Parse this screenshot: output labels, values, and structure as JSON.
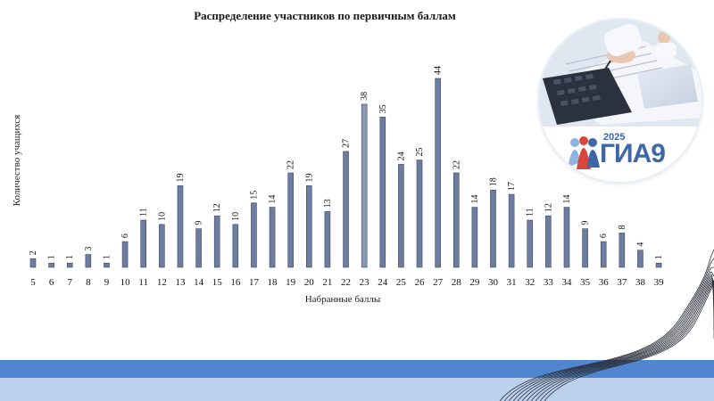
{
  "colors": {
    "bar": "#6d7da0",
    "bar_highlight": "#8a98b8",
    "band_dark": "#4f86cf",
    "band_light": "#bcd1ee",
    "logo_blue": "#3f67a8",
    "logo_red": "#d9463b",
    "logo_light": "#8fb3e0"
  },
  "chart_data": {
    "type": "bar",
    "title": "Распределение участников по первичным баллам",
    "xlabel": "Набранные баллы",
    "ylabel": "Количество учащихся",
    "categories": [
      "5",
      "6",
      "7",
      "8",
      "9",
      "10",
      "11",
      "12",
      "13",
      "14",
      "15",
      "16",
      "17",
      "18",
      "19",
      "20",
      "21",
      "22",
      "23",
      "24",
      "25",
      "26",
      "27",
      "28",
      "29",
      "30",
      "31",
      "32",
      "33",
      "34",
      "35",
      "36",
      "37",
      "38",
      "39"
    ],
    "values": [
      2,
      1,
      1,
      3,
      1,
      6,
      11,
      10,
      19,
      9,
      12,
      10,
      15,
      14,
      22,
      19,
      13,
      27,
      38,
      35,
      24,
      25,
      44,
      22,
      14,
      18,
      17,
      11,
      12,
      14,
      9,
      6,
      8,
      4,
      1
    ],
    "ylim": [
      0,
      44
    ],
    "grid": false,
    "legend": "none"
  },
  "logo": {
    "year": "2025",
    "brand": "ГИА9",
    "image": "person-writing-at-keyboard-icon"
  }
}
